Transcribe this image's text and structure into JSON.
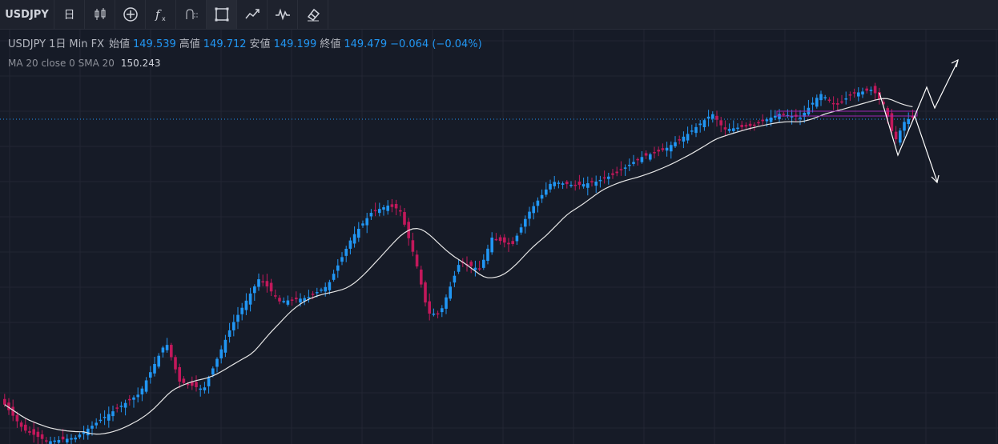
{
  "toolbar": {
    "symbol": "USDJPY",
    "interval": "日",
    "buttons": [
      {
        "name": "candles-icon"
      },
      {
        "name": "add-compare-icon"
      },
      {
        "name": "indicators-icon"
      },
      {
        "name": "alert-icon"
      },
      {
        "name": "rectangle-icon"
      },
      {
        "name": "line-chart-icon"
      },
      {
        "name": "replay-icon"
      },
      {
        "name": "eraser-icon"
      }
    ]
  },
  "legend": {
    "symbol": "USDJPY",
    "interval": "1日",
    "source": "Min FX",
    "open_label": "始値",
    "open": "149.539",
    "high_label": "高値",
    "high": "149.712",
    "low_label": "安値",
    "low": "149.199",
    "close_label": "終値",
    "close": "149.479",
    "change": "−0.064 (−0.04%)"
  },
  "indicator": {
    "label": "MA 20 close 0 SMA 20",
    "value": "150.243"
  },
  "colors": {
    "up": "#2196f3",
    "down": "#c2185b",
    "ma": "#e0e0e0",
    "price_line": "#2196f3",
    "zone": "#9c27b0",
    "background": "#161b27",
    "grid": "#232734"
  }
}
